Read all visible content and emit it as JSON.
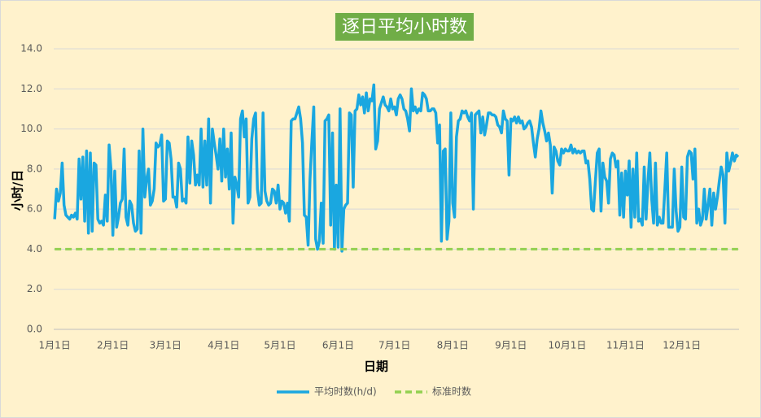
{
  "chart_data": {
    "type": "line",
    "title": "逐日平均小时数",
    "x_label": "日期",
    "y_label": "小时/日",
    "categories": [
      "1月1日",
      null,
      null,
      null,
      null,
      null,
      null,
      null,
      null,
      null,
      null,
      null,
      null,
      null,
      null,
      null,
      null,
      null,
      null,
      null,
      null,
      null,
      null,
      null,
      null,
      null,
      null,
      null,
      null,
      null,
      null,
      "2月1日",
      null,
      null,
      null,
      null,
      null,
      null,
      null,
      null,
      null,
      null,
      null,
      null,
      null,
      null,
      null,
      null,
      null,
      null,
      null,
      null,
      null,
      null,
      null,
      null,
      null,
      null,
      null,
      "3月1日",
      null,
      null,
      null,
      null,
      null,
      null,
      null,
      null,
      null,
      null,
      null,
      null,
      null,
      null,
      null,
      null,
      null,
      null,
      null,
      null,
      null,
      null,
      null,
      null,
      null,
      null,
      null,
      null,
      null,
      null,
      "4月1日",
      null,
      null,
      null,
      null,
      null,
      null,
      null,
      null,
      null,
      null,
      null,
      null,
      null,
      null,
      null,
      null,
      null,
      null,
      null,
      null,
      null,
      null,
      null,
      null,
      null,
      null,
      null,
      null,
      null,
      "5月1日",
      null,
      null,
      null,
      null,
      null,
      null,
      null,
      null,
      null,
      null,
      null,
      null,
      null,
      null,
      null,
      null,
      null,
      null,
      null,
      null,
      null,
      null,
      null,
      null,
      null,
      null,
      null,
      null,
      null,
      null,
      "6月1日",
      null,
      null,
      null,
      null,
      null,
      null,
      null,
      null,
      null,
      null,
      null,
      null,
      null,
      null,
      null,
      null,
      null,
      null,
      null,
      null,
      null,
      null,
      null,
      null,
      null,
      null,
      null,
      null,
      null,
      "7月1日",
      null,
      null,
      null,
      null,
      null,
      null,
      null,
      null,
      null,
      null,
      null,
      null,
      null,
      null,
      null,
      null,
      null,
      null,
      null,
      null,
      null,
      null,
      null,
      null,
      null,
      null,
      null,
      null,
      null,
      null,
      "8月1日",
      null,
      null,
      null,
      null,
      null,
      null,
      null,
      null,
      null,
      null,
      null,
      null,
      null,
      null,
      null,
      null,
      null,
      null,
      null,
      null,
      null,
      null,
      null,
      null,
      null,
      null,
      null,
      null,
      null,
      null,
      "9月1日",
      null,
      null,
      null,
      null,
      null,
      null,
      null,
      null,
      null,
      null,
      null,
      null,
      null,
      null,
      null,
      null,
      null,
      null,
      null,
      null,
      null,
      null,
      null,
      null,
      null,
      null,
      null,
      null,
      null,
      "10月1日",
      null,
      null,
      null,
      null,
      null,
      null,
      null,
      null,
      null,
      null,
      null,
      null,
      null,
      null,
      null,
      null,
      null,
      null,
      null,
      null,
      null,
      null,
      null,
      null,
      null,
      null,
      null,
      null,
      null,
      null,
      "11月1日",
      null,
      null,
      null,
      null,
      null,
      null,
      null,
      null,
      null,
      null,
      null,
      null,
      null,
      null,
      null,
      null,
      null,
      null,
      null,
      null,
      null,
      null,
      null,
      null,
      null,
      null,
      null,
      null,
      null,
      "12月1日",
      null,
      null,
      null,
      null,
      null,
      null,
      null,
      null,
      null,
      null,
      null,
      null,
      null,
      null,
      null,
      null,
      null,
      null,
      null,
      null,
      null,
      null,
      null,
      null,
      null,
      null,
      null,
      null,
      null,
      null
    ],
    "series": [
      {
        "name": "平均时数(h/d)",
        "color": "#1aa7e0",
        "dashed": false,
        "values": [
          5.5,
          7.0,
          6.4,
          6.8,
          8.3,
          6.2,
          5.7,
          5.6,
          5.5,
          5.7,
          5.6,
          5.8,
          5.5,
          8.5,
          6.5,
          8.6,
          5.4,
          8.9,
          4.8,
          8.8,
          4.9,
          8.3,
          8.2,
          5.5,
          5.3,
          5.4,
          5.2,
          6.7,
          5.4,
          9.2,
          8.0,
          4.7,
          7.9,
          5.1,
          5.6,
          6.3,
          6.5,
          9.0,
          5.6,
          5.2,
          6.4,
          6.2,
          5.3,
          4.9,
          5.0,
          8.9,
          4.8,
          10.0,
          6.6,
          7.5,
          8.0,
          6.2,
          6.4,
          7.0,
          9.3,
          9.1,
          9.2,
          9.7,
          6.4,
          6.5,
          9.4,
          9.3,
          8.5,
          6.6,
          6.6,
          6.1,
          8.3,
          8.0,
          6.4,
          6.5,
          6.3,
          9.6,
          7.3,
          9.4,
          8.7,
          7.2,
          7.7,
          7.2,
          10.0,
          7.1,
          9.4,
          7.2,
          10.5,
          6.3,
          10.0,
          9.3,
          8.7,
          8.0,
          9.5,
          7.4,
          10.0,
          7.6,
          9.0,
          7.0,
          9.8,
          5.3,
          7.6,
          7.2,
          6.6,
          10.5,
          10.9,
          9.6,
          10.5,
          6.3,
          6.6,
          9.5,
          10.5,
          10.8,
          7.0,
          6.2,
          6.3,
          10.8,
          6.9,
          6.4,
          6.2,
          6.3,
          7.0,
          6.9,
          6.3,
          7.2,
          6.0,
          6.4,
          6.3,
          5.8,
          6.3,
          5.4,
          10.4,
          10.5,
          10.5,
          10.8,
          11.1,
          10.5,
          9.3,
          5.7,
          5.6,
          4.2,
          7.5,
          9.4,
          11.1,
          4.5,
          4.0,
          4.4,
          6.3,
          4.3,
          10.4,
          10.5,
          10.7,
          5.2,
          9.8,
          4.0,
          7.2,
          4.1,
          11.0,
          3.9,
          6.0,
          6.2,
          6.3,
          10.8,
          10.7,
          7.1,
          10.9,
          11.0,
          11.7,
          11.2,
          11.6,
          10.8,
          11.8,
          10.9,
          11.5,
          11.4,
          12.2,
          9.0,
          9.4,
          11.0,
          11.3,
          11.6,
          11.2,
          11.1,
          10.9,
          11.5,
          11.0,
          11.1,
          10.7,
          11.5,
          11.7,
          11.5,
          11.0,
          10.9,
          10.5,
          9.9,
          12.0,
          10.9,
          11.1,
          10.8,
          11.0,
          10.9,
          11.8,
          11.7,
          11.5,
          10.9,
          10.9,
          11.0,
          11.0,
          10.8,
          9.3,
          10.2,
          4.4,
          8.9,
          9.0,
          4.5,
          5.4,
          10.8,
          6.3,
          5.6,
          9.6,
          10.4,
          10.5,
          10.9,
          10.8,
          10.9,
          10.6,
          10.4,
          10.8,
          6.0,
          10.7,
          10.8,
          10.9,
          9.8,
          10.6,
          9.7,
          10.2,
          10.8,
          10.8,
          10.7,
          10.7,
          10.6,
          10.2,
          10.1,
          9.8,
          10.9,
          10.5,
          10.4,
          7.7,
          10.5,
          10.4,
          10.6,
          10.3,
          10.6,
          10.3,
          10.4,
          10.0,
          10.1,
          10.3,
          10.4,
          10.1,
          9.3,
          8.6,
          9.5,
          10.0,
          10.9,
          10.3,
          9.9,
          9.4,
          9.8,
          9.2,
          6.8,
          9.1,
          8.9,
          8.4,
          8.2,
          9.0,
          8.8,
          9.0,
          8.9,
          8.9,
          9.2,
          8.8,
          9.0,
          8.8,
          8.9,
          8.8,
          8.9,
          8.9,
          8.3,
          8.4,
          7.5,
          6.0,
          5.9,
          7.4,
          8.8,
          9.0,
          5.9,
          8.3,
          7.6,
          7.4,
          6.3,
          8.5,
          8.8,
          8.7,
          8.1,
          8.4,
          5.7,
          7.8,
          5.6,
          7.9,
          6.7,
          8.4,
          5.1,
          8.0,
          5.6,
          8.8,
          5.4,
          5.5,
          5.2,
          8.1,
          5.5,
          7.4,
          8.8,
          6.5,
          5.3,
          8.3,
          5.2,
          5.6,
          5.3,
          5.3,
          7.0,
          8.8,
          5.1,
          5.1,
          5.1,
          8.0,
          5.9,
          4.9,
          5.1,
          8.1,
          5.6,
          5.5,
          8.6,
          8.9,
          8.8,
          7.5,
          9.0,
          5.3,
          6.0,
          5.2,
          5.5,
          7.0,
          5.5,
          6.2,
          7.0,
          5.2,
          6.8,
          6.0,
          6.6,
          7.4,
          8.1,
          7.7,
          5.3,
          8.8,
          7.9,
          8.3,
          8.8,
          8.4,
          8.7,
          8.6
        ]
      },
      {
        "name": "标准时数",
        "color": "#92d050",
        "dashed": true,
        "values": [
          4,
          4,
          4,
          4,
          4,
          4,
          4,
          4,
          4,
          4,
          4,
          4,
          4,
          4,
          4,
          4,
          4,
          4,
          4,
          4,
          4,
          4,
          4,
          4,
          4,
          4,
          4,
          4,
          4,
          4,
          4,
          4,
          4,
          4,
          4,
          4,
          4,
          4,
          4,
          4,
          4,
          4,
          4,
          4,
          4,
          4,
          4,
          4,
          4,
          4,
          4,
          4,
          4,
          4,
          4,
          4,
          4,
          4,
          4,
          4,
          4,
          4,
          4,
          4,
          4,
          4,
          4,
          4,
          4,
          4,
          4,
          4,
          4,
          4,
          4,
          4,
          4,
          4,
          4,
          4,
          4,
          4,
          4,
          4,
          4,
          4,
          4,
          4,
          4,
          4,
          4,
          4,
          4,
          4,
          4,
          4,
          4,
          4,
          4,
          4,
          4,
          4,
          4,
          4,
          4,
          4,
          4,
          4,
          4,
          4,
          4,
          4,
          4,
          4,
          4,
          4,
          4,
          4,
          4,
          4,
          4,
          4,
          4,
          4,
          4,
          4,
          4,
          4,
          4,
          4,
          4,
          4,
          4,
          4,
          4,
          4,
          4,
          4,
          4,
          4,
          4,
          4,
          4,
          4,
          4,
          4,
          4,
          4,
          4,
          4,
          4,
          4,
          4,
          4,
          4,
          4,
          4,
          4,
          4,
          4,
          4,
          4,
          4,
          4,
          4,
          4,
          4,
          4,
          4,
          4,
          4,
          4,
          4,
          4,
          4,
          4,
          4,
          4,
          4,
          4,
          4,
          4,
          4,
          4,
          4,
          4,
          4,
          4,
          4,
          4,
          4,
          4,
          4,
          4,
          4,
          4,
          4,
          4,
          4,
          4,
          4,
          4,
          4,
          4,
          4,
          4,
          4,
          4,
          4,
          4,
          4,
          4,
          4,
          4,
          4,
          4,
          4,
          4,
          4,
          4,
          4,
          4,
          4,
          4,
          4,
          4,
          4,
          4,
          4,
          4,
          4,
          4,
          4,
          4,
          4,
          4,
          4,
          4,
          4,
          4,
          4,
          4,
          4,
          4,
          4,
          4,
          4,
          4,
          4,
          4,
          4,
          4,
          4,
          4,
          4,
          4,
          4,
          4,
          4,
          4,
          4,
          4,
          4,
          4,
          4,
          4,
          4,
          4,
          4,
          4,
          4,
          4,
          4,
          4,
          4,
          4,
          4,
          4,
          4,
          4,
          4,
          4,
          4,
          4,
          4,
          4,
          4,
          4,
          4,
          4,
          4,
          4,
          4,
          4,
          4,
          4,
          4,
          4,
          4,
          4,
          4,
          4,
          4,
          4,
          4,
          4,
          4,
          4,
          4,
          4,
          4,
          4,
          4,
          4,
          4,
          4,
          4,
          4,
          4,
          4,
          4,
          4,
          4,
          4,
          4,
          4,
          4,
          4,
          4,
          4,
          4,
          4,
          4,
          4,
          4,
          4,
          4,
          4,
          4,
          4,
          4,
          4,
          4,
          4,
          4,
          4,
          4,
          4,
          4,
          4,
          4,
          4,
          4,
          4,
          4,
          4,
          4,
          4,
          4,
          4,
          4,
          4,
          4,
          4,
          4
        ]
      }
    ],
    "ylim": [
      0,
      14
    ],
    "yticks": [
      {
        "value": 0,
        "label": "0.0"
      },
      {
        "value": 2,
        "label": "2.0"
      },
      {
        "value": 4,
        "label": "4.0"
      },
      {
        "value": 6,
        "label": "6.0"
      },
      {
        "value": 8,
        "label": "8.0"
      },
      {
        "value": 10,
        "label": "10.0"
      },
      {
        "value": 12,
        "label": "12.0"
      },
      {
        "value": 14,
        "label": "14.0"
      }
    ],
    "grid": true,
    "legend": "bottom"
  }
}
